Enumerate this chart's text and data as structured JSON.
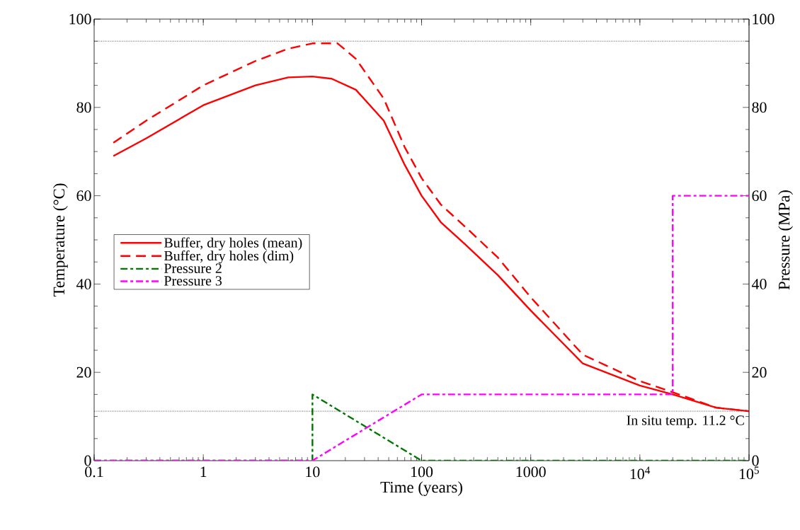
{
  "chart_data": {
    "type": "line",
    "xlabel": "Time (years)",
    "ylabel": "Temperature (°C)",
    "y2label": "Pressure (MPa)",
    "log": "x",
    "xlim": [
      0.1,
      100000
    ],
    "xticks": [
      0.1,
      1,
      10,
      100,
      1000,
      {
        "value": 10000,
        "label": "10$^{4}$"
      },
      {
        "value": 100000,
        "label": "10$^{5}$"
      }
    ],
    "ylim": [
      0,
      100
    ],
    "yticks": [
      0,
      20,
      40,
      60,
      80,
      100
    ],
    "y2lim": [
      0,
      100
    ],
    "y2ticks": [
      0,
      20,
      40,
      60,
      80,
      100
    ],
    "legend": "left",
    "grid": false,
    "marker": "none",
    "series": [
      {
        "name": "Buffer, dry holes (mean)",
        "color": "#ff0000",
        "line_style": "solid",
        "x": [
          0.15,
          0.3,
          1,
          3,
          6,
          10,
          15,
          25,
          45,
          70,
          100,
          150,
          250,
          500,
          1000,
          3000,
          10000,
          20000,
          50000,
          100000
        ],
        "values": [
          69,
          73,
          80.5,
          85,
          86.8,
          87,
          86.5,
          84,
          77,
          67,
          60,
          54,
          49,
          42,
          34,
          22,
          17,
          15,
          12,
          11.2
        ]
      },
      {
        "name": "Buffer, dry holes (dim)",
        "color": "#ff0000",
        "line_style": "dashed",
        "x": [
          0.15,
          0.3,
          1,
          3,
          6,
          10,
          17,
          25,
          45,
          70,
          100,
          150,
          250,
          500,
          1000,
          3000,
          10000,
          20000,
          50000,
          100000
        ],
        "values": [
          72,
          77,
          85,
          90.5,
          93.3,
          94.5,
          94.5,
          91,
          82,
          71,
          64,
          58,
          53,
          46,
          37,
          24,
          18,
          15.5,
          12,
          11.2
        ]
      },
      {
        "name": "Pressure 2",
        "color": "#007700",
        "line_style": "dashdot",
        "axis": "y2",
        "x": [
          0.1,
          10,
          10,
          100,
          100000
        ],
        "values": [
          0,
          0,
          15,
          0,
          0
        ]
      },
      {
        "name": "Pressure 3",
        "color": "#ff00ff",
        "line_style": "dashdot",
        "axis": "y2",
        "x": [
          0.1,
          10,
          100,
          20000,
          20000,
          100000
        ],
        "values": [
          0,
          0,
          15,
          15,
          60,
          60
        ]
      }
    ],
    "ref_lines": [
      {
        "axis": "y",
        "value": 95,
        "line_style": "dotted",
        "color": "#000000"
      },
      {
        "axis": "y",
        "value": 11.2,
        "line_style": "dotted",
        "color": "#000000",
        "label": "In situ temp. 11.2 °C"
      }
    ]
  }
}
